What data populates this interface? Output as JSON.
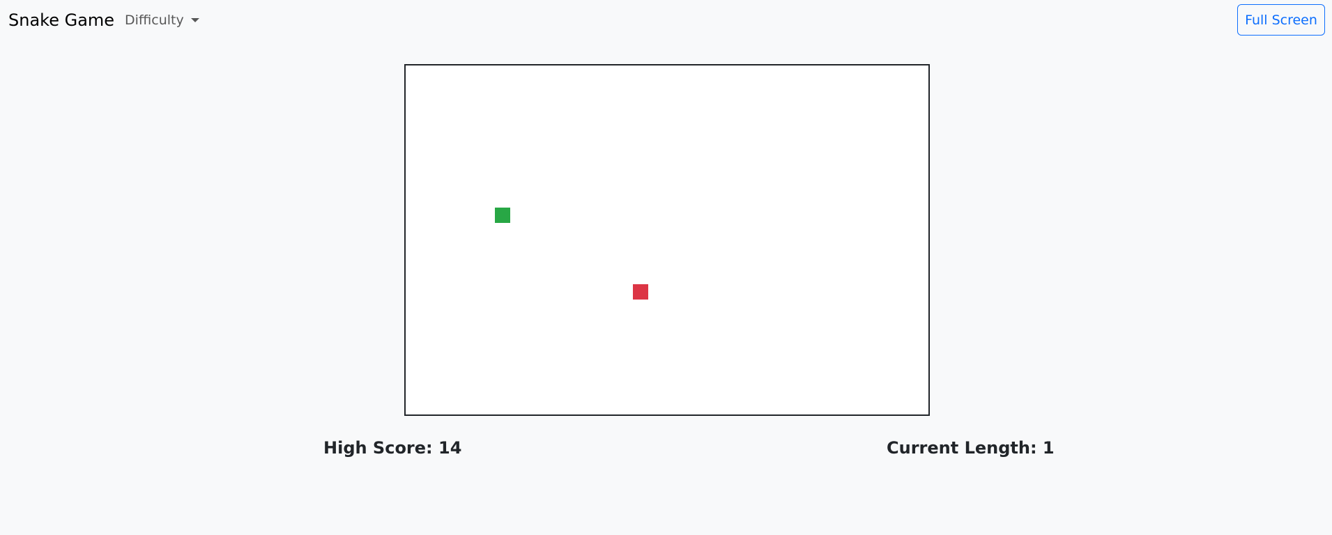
{
  "navbar": {
    "brand": "Snake Game",
    "difficulty_label": "Difficulty",
    "fullscreen_label": "Full Screen"
  },
  "game": {
    "grid": {
      "cols": 34,
      "rows": 23
    },
    "snake": [
      {
        "col": 5,
        "row": 9
      }
    ],
    "food": {
      "col": 14,
      "row": 14
    },
    "colors": {
      "snake": "#28a745",
      "food": "#dc3545",
      "board_bg": "#ffffff",
      "board_border": "#212529"
    }
  },
  "stats": {
    "high_score_text": "High Score: 14",
    "current_length_text": "Current Length: 1"
  }
}
